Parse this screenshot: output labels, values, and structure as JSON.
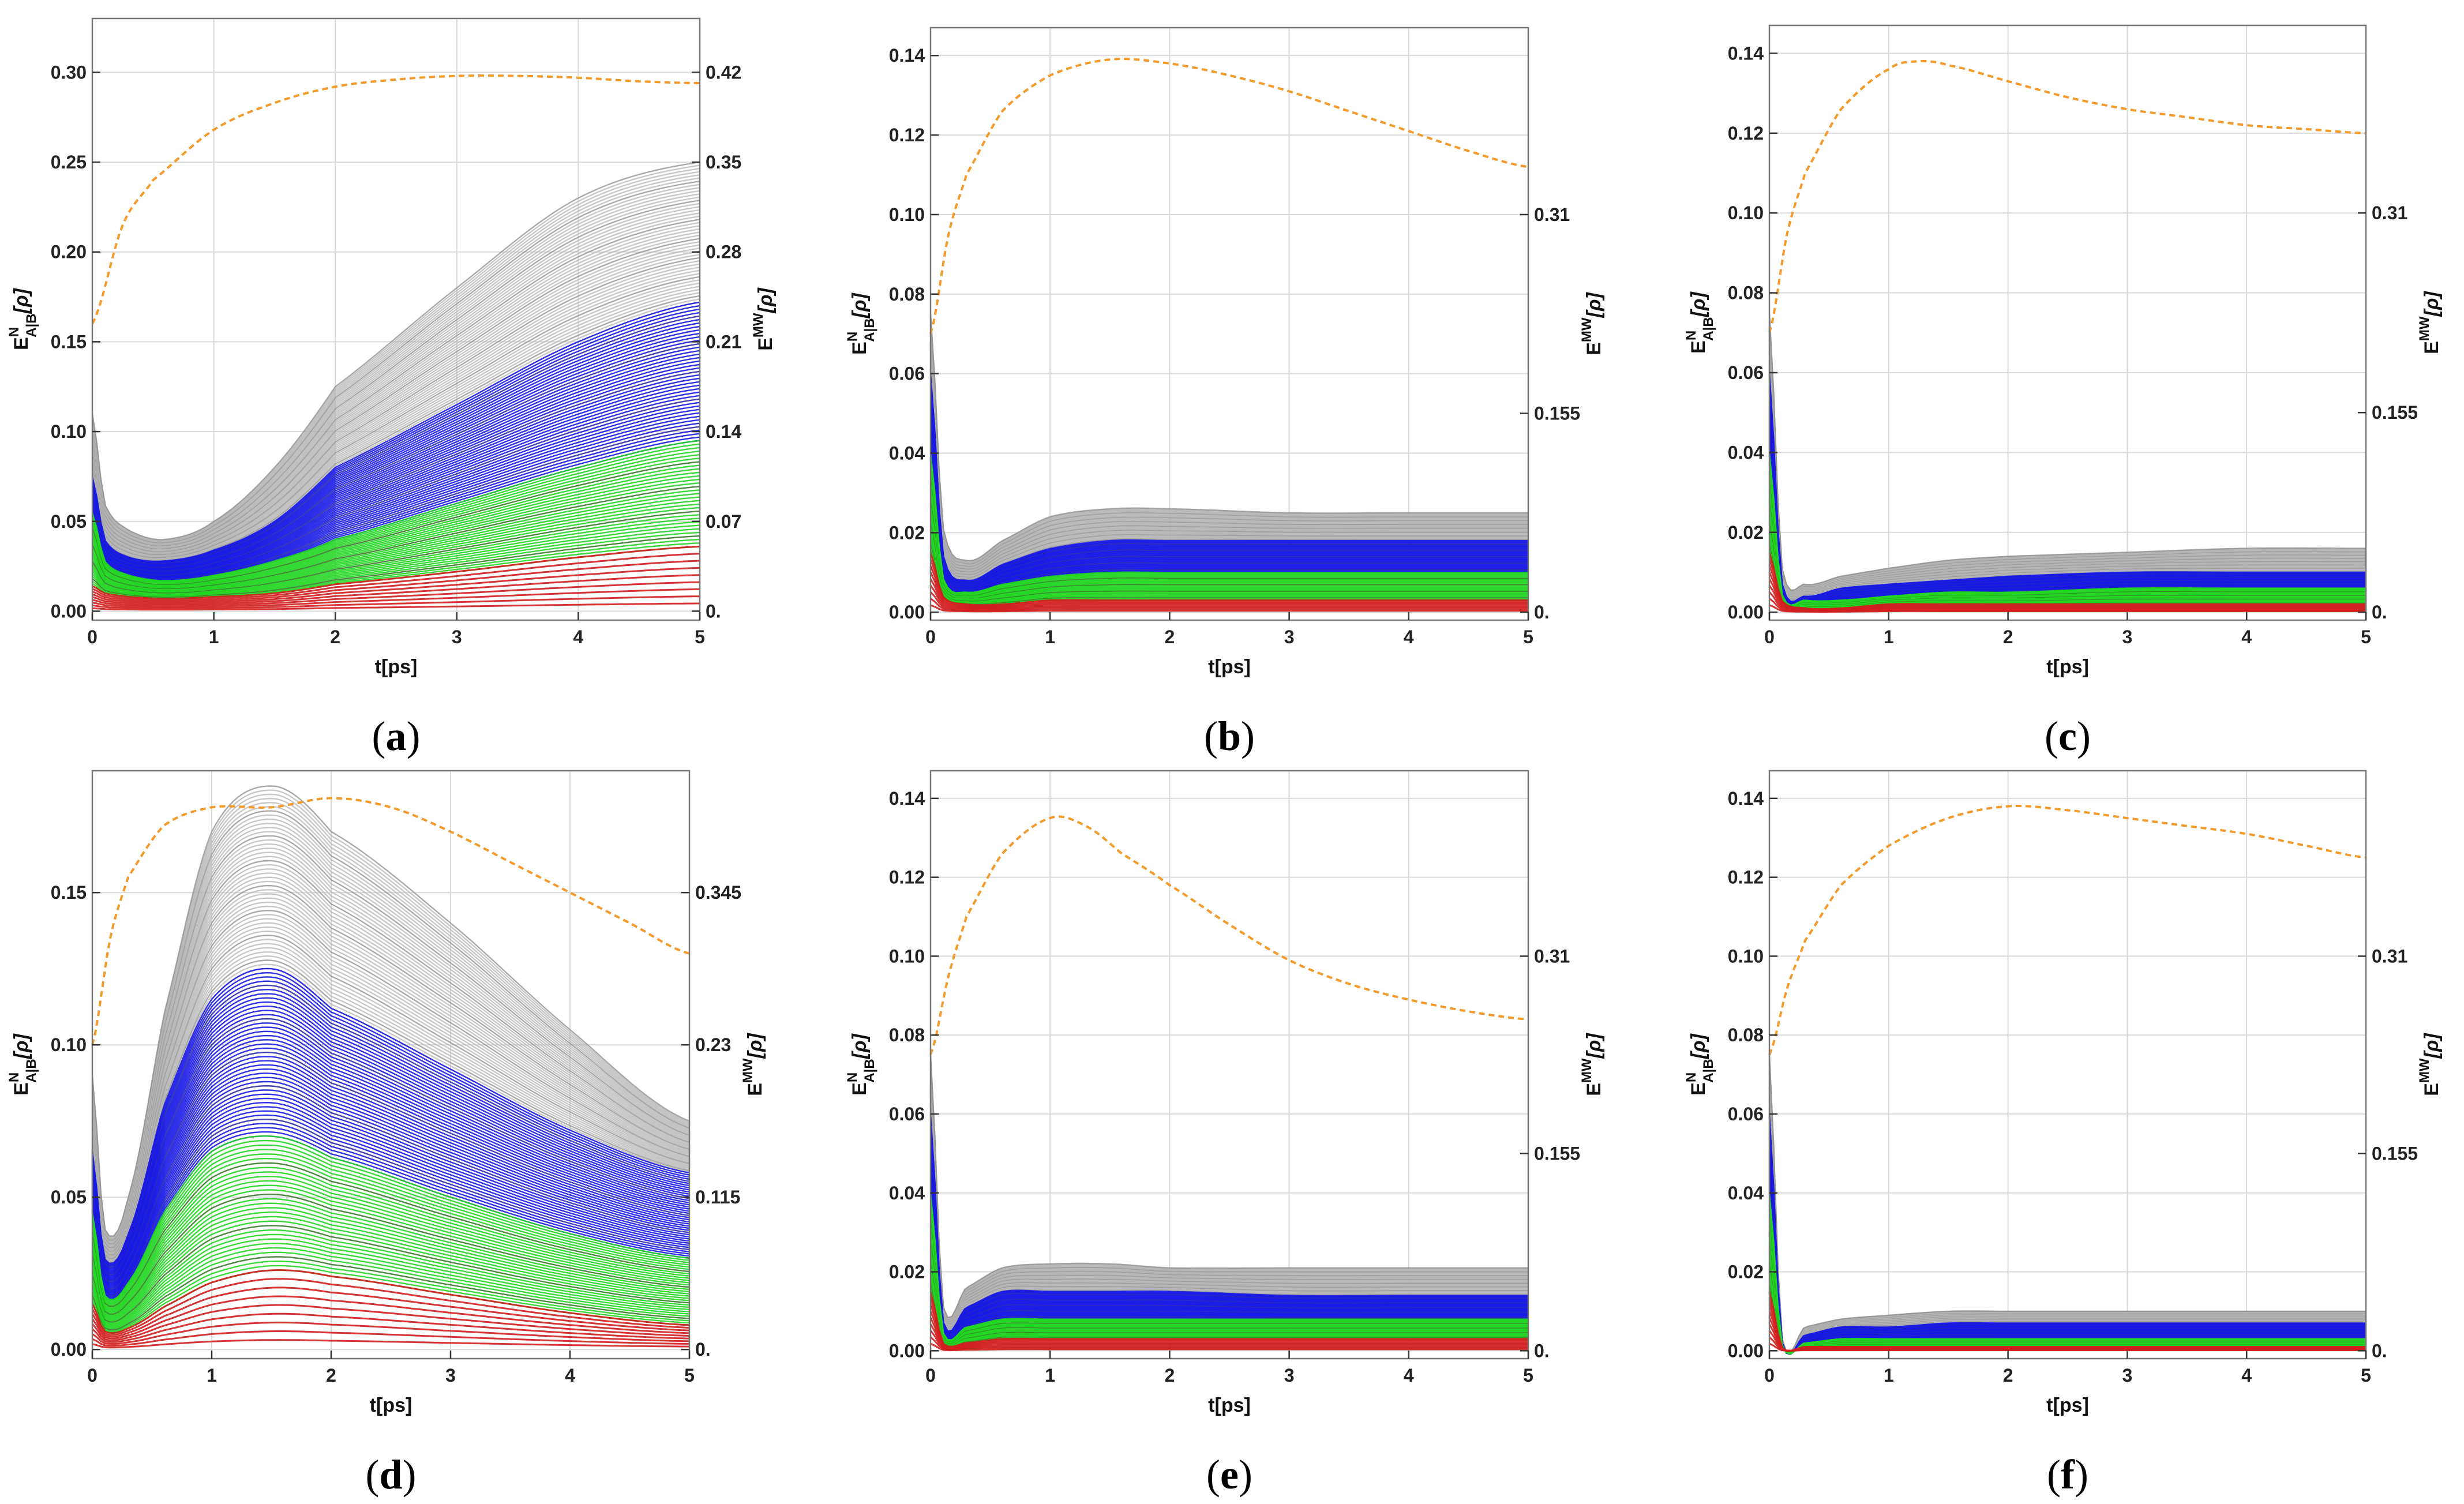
{
  "figure_note": "Six panels (a)-(f)",
  "colors": {
    "gray": "#b4b4b4",
    "blue": "#1a1ae6",
    "green": "#22d622",
    "darkgreen": "#3a7a2a",
    "red": "#d21e1e",
    "orange": "#f39a2a",
    "grid": "#d9d9d9",
    "frame": "#777777"
  },
  "chart_data": [
    {
      "type": "line",
      "caption": "(a)",
      "xlabel": "t[ps]",
      "ylabel_left": "E^N_{A|B}[ρ]",
      "ylabel_right": "E^{MW}[ρ]",
      "xlim": [
        0,
        5
      ],
      "ylim": [
        -0.005,
        0.33
      ],
      "xticks": [
        "0",
        "1",
        "2",
        "3",
        "4",
        "5"
      ],
      "yticks": [
        "0.00",
        "0.05",
        "0.10",
        "0.15",
        "0.20",
        "0.25",
        "0.30"
      ],
      "right_ticks": [
        "0.",
        "0.07",
        "0.14",
        "0.21",
        "0.28",
        "0.35",
        "0.42"
      ],
      "right_tick_positions": [
        0,
        0.05,
        0.1,
        0.15,
        0.2,
        0.25,
        0.3
      ],
      "series": {
        "gray": {
          "name": "gray band",
          "values": [
            0.11,
            0.06,
            0.045,
            0.04,
            0.05,
            0.08,
            0.125,
            0.18,
            0.23,
            0.25
          ]
        },
        "blue": {
          "name": "blue band",
          "values": [
            0.075,
            0.04,
            0.03,
            0.028,
            0.034,
            0.05,
            0.08,
            0.115,
            0.15,
            0.172
          ]
        },
        "green": {
          "name": "green band",
          "values": [
            0.055,
            0.028,
            0.02,
            0.017,
            0.02,
            0.028,
            0.04,
            0.06,
            0.08,
            0.095
          ]
        },
        "red": {
          "name": "red band",
          "values": [
            0.014,
            0.01,
            0.008,
            0.007,
            0.008,
            0.01,
            0.015,
            0.022,
            0.03,
            0.036
          ]
        },
        "orange": {
          "name": "E^MW (dashed)",
          "x": [
            0,
            0.25,
            0.5,
            1,
            1.5,
            2,
            2.5,
            3,
            3.5,
            4,
            4.5,
            5
          ],
          "values": [
            0.16,
            0.215,
            0.24,
            0.268,
            0.283,
            0.292,
            0.296,
            0.298,
            0.298,
            0.297,
            0.295,
            0.294
          ]
        }
      }
    },
    {
      "type": "line",
      "caption": "(b)",
      "xlabel": "t[ps]",
      "ylabel_left": "E^N_{A|B}[ρ]",
      "ylabel_right": "E^{MW}[ρ]",
      "xlim": [
        0,
        5
      ],
      "ylim": [
        -0.002,
        0.147
      ],
      "xticks": [
        "0",
        "1",
        "2",
        "3",
        "4",
        "5"
      ],
      "yticks": [
        "0.00",
        "0.02",
        "0.04",
        "0.06",
        "0.08",
        "0.10",
        "0.12",
        "0.14"
      ],
      "right_ticks": [
        "0.",
        "0.155",
        "0.31"
      ],
      "right_tick_positions": [
        0,
        0.05,
        0.1
      ],
      "series": {
        "gray": {
          "name": "gray band",
          "values": [
            0.075,
            0.022,
            0.013,
            0.018,
            0.024,
            0.026,
            0.026,
            0.025,
            0.025,
            0.025
          ]
        },
        "blue": {
          "name": "blue band",
          "values": [
            0.06,
            0.015,
            0.008,
            0.012,
            0.016,
            0.018,
            0.018,
            0.018,
            0.018,
            0.018
          ]
        },
        "green": {
          "name": "green band",
          "values": [
            0.04,
            0.009,
            0.005,
            0.007,
            0.009,
            0.01,
            0.01,
            0.01,
            0.01,
            0.01
          ]
        },
        "red": {
          "name": "red band",
          "values": [
            0.015,
            0.004,
            0.002,
            0.002,
            0.003,
            0.003,
            0.003,
            0.003,
            0.003,
            0.003
          ]
        },
        "orange": {
          "name": "E^MW (dashed)",
          "x": [
            0,
            0.15,
            0.3,
            0.6,
            1,
            1.5,
            2,
            2.5,
            3,
            3.5,
            4,
            4.5,
            5
          ],
          "values": [
            0.07,
            0.095,
            0.11,
            0.126,
            0.135,
            0.139,
            0.138,
            0.135,
            0.131,
            0.126,
            0.121,
            0.116,
            0.112
          ]
        }
      }
    },
    {
      "type": "line",
      "caption": "(c)",
      "xlabel": "t[ps]",
      "ylabel_left": "E^N_{A|B}[ρ]",
      "ylabel_right": "E^{MW}[ρ]",
      "xlim": [
        0,
        5
      ],
      "ylim": [
        -0.002,
        0.147
      ],
      "xticks": [
        "0",
        "1",
        "2",
        "3",
        "4",
        "5"
      ],
      "yticks": [
        "0.00",
        "0.02",
        "0.04",
        "0.06",
        "0.08",
        "0.10",
        "0.12",
        "0.14"
      ],
      "right_ticks": [
        "0.",
        "0.155",
        "0.31"
      ],
      "right_tick_positions": [
        0,
        0.05,
        0.1
      ],
      "series": {
        "gray": {
          "name": "gray band",
          "values": [
            0.075,
            0.012,
            0.007,
            0.009,
            0.011,
            0.013,
            0.014,
            0.015,
            0.016,
            0.016
          ]
        },
        "blue": {
          "name": "blue band",
          "values": [
            0.06,
            0.008,
            0.004,
            0.006,
            0.007,
            0.008,
            0.009,
            0.01,
            0.01,
            0.01
          ]
        },
        "green": {
          "name": "green band",
          "values": [
            0.04,
            0.005,
            0.003,
            0.003,
            0.004,
            0.005,
            0.005,
            0.006,
            0.006,
            0.006
          ]
        },
        "red": {
          "name": "red band",
          "values": [
            0.015,
            0.003,
            0.001,
            0.001,
            0.002,
            0.002,
            0.002,
            0.002,
            0.002,
            0.002
          ]
        },
        "orange": {
          "name": "E^MW (dashed)",
          "x": [
            0,
            0.15,
            0.3,
            0.6,
            1,
            1.25,
            1.5,
            2,
            2.5,
            3,
            3.5,
            4,
            4.5,
            5
          ],
          "values": [
            0.07,
            0.095,
            0.11,
            0.126,
            0.136,
            0.138,
            0.137,
            0.133,
            0.129,
            0.126,
            0.124,
            0.122,
            0.121,
            0.12
          ]
        }
      }
    },
    {
      "type": "line",
      "caption": "(d)",
      "xlabel": "t[ps]",
      "ylabel_left": "E^N_{A|B}[ρ]",
      "ylabel_right": "E^{MW}[ρ]",
      "xlim": [
        0,
        5
      ],
      "ylim": [
        -0.003,
        0.19
      ],
      "xticks": [
        "0",
        "1",
        "2",
        "3",
        "4",
        "5"
      ],
      "yticks": [
        "0.00",
        "0.05",
        "0.10",
        "0.15"
      ],
      "right_ticks": [
        "0.",
        "0.115",
        "0.23",
        "0.345"
      ],
      "right_tick_positions": [
        0,
        0.05,
        0.1,
        0.15
      ],
      "series": {
        "gray": {
          "name": "gray band",
          "values": [
            0.09,
            0.04,
            0.05,
            0.11,
            0.17,
            0.185,
            0.17,
            0.14,
            0.105,
            0.075
          ]
        },
        "blue": {
          "name": "blue band",
          "values": [
            0.065,
            0.03,
            0.038,
            0.08,
            0.115,
            0.125,
            0.112,
            0.092,
            0.072,
            0.058
          ]
        },
        "green": {
          "name": "green band",
          "values": [
            0.045,
            0.018,
            0.022,
            0.045,
            0.065,
            0.07,
            0.063,
            0.05,
            0.038,
            0.03
          ]
        },
        "red": {
          "name": "red band",
          "values": [
            0.015,
            0.006,
            0.007,
            0.014,
            0.022,
            0.026,
            0.024,
            0.018,
            0.012,
            0.008
          ]
        },
        "orange": {
          "name": "E^MW (dashed)",
          "x": [
            0,
            0.15,
            0.3,
            0.6,
            1,
            1.5,
            2,
            2.5,
            3,
            3.5,
            4,
            4.5,
            5
          ],
          "values": [
            0.1,
            0.135,
            0.155,
            0.172,
            0.178,
            0.178,
            0.181,
            0.178,
            0.17,
            0.16,
            0.15,
            0.14,
            0.13
          ]
        }
      }
    },
    {
      "type": "line",
      "caption": "(e)",
      "xlabel": "t[ps]",
      "ylabel_left": "E^N_{A|B}[ρ]",
      "ylabel_right": "E^{MW}[ρ]",
      "xlim": [
        0,
        5
      ],
      "ylim": [
        -0.002,
        0.147
      ],
      "xticks": [
        "0",
        "1",
        "2",
        "3",
        "4",
        "5"
      ],
      "yticks": [
        "0.00",
        "0.02",
        "0.04",
        "0.06",
        "0.08",
        "0.10",
        "0.12",
        "0.14"
      ],
      "right_ticks": [
        "0.",
        "0.155",
        "0.31"
      ],
      "right_tick_positions": [
        0,
        0.05,
        0.1
      ],
      "series": {
        "gray": {
          "name": "gray band",
          "values": [
            0.075,
            0.012,
            0.016,
            0.021,
            0.022,
            0.022,
            0.021,
            0.021,
            0.021,
            0.021
          ]
        },
        "blue": {
          "name": "blue band",
          "values": [
            0.06,
            0.008,
            0.011,
            0.015,
            0.015,
            0.015,
            0.015,
            0.014,
            0.014,
            0.014
          ]
        },
        "green": {
          "name": "green band",
          "values": [
            0.04,
            0.005,
            0.006,
            0.008,
            0.008,
            0.008,
            0.008,
            0.008,
            0.008,
            0.008
          ]
        },
        "red": {
          "name": "red band",
          "values": [
            0.015,
            0.002,
            0.002,
            0.003,
            0.003,
            0.003,
            0.003,
            0.003,
            0.003,
            0.003
          ]
        },
        "orange": {
          "name": "E^MW (dashed)",
          "x": [
            0,
            0.15,
            0.3,
            0.6,
            1,
            1.3,
            1.6,
            2,
            2.5,
            3,
            3.5,
            4,
            4.5,
            5
          ],
          "values": [
            0.075,
            0.095,
            0.11,
            0.126,
            0.135,
            0.133,
            0.126,
            0.118,
            0.108,
            0.099,
            0.093,
            0.089,
            0.086,
            0.084
          ]
        }
      }
    },
    {
      "type": "line",
      "caption": "(f)",
      "xlabel": "t[ps]",
      "ylabel_left": "E^N_{A|B}[ρ]",
      "ylabel_right": "E^{MW}[ρ]",
      "xlim": [
        0,
        5
      ],
      "ylim": [
        -0.002,
        0.147
      ],
      "xticks": [
        "0",
        "1",
        "2",
        "3",
        "4",
        "5"
      ],
      "yticks": [
        "0.00",
        "0.02",
        "0.04",
        "0.06",
        "0.08",
        "0.10",
        "0.12",
        "0.14"
      ],
      "right_ticks": [
        "0.",
        "0.155",
        "0.31"
      ],
      "right_tick_positions": [
        0,
        0.05,
        0.1
      ],
      "series": {
        "gray": {
          "name": "gray band",
          "values": [
            0.075,
            0.004,
            0.006,
            0.008,
            0.009,
            0.01,
            0.01,
            0.01,
            0.01,
            0.01
          ]
        },
        "blue": {
          "name": "blue band",
          "values": [
            0.06,
            0.003,
            0.004,
            0.006,
            0.006,
            0.007,
            0.007,
            0.007,
            0.007,
            0.007
          ]
        },
        "green": {
          "name": "green band",
          "values": [
            0.04,
            0.002,
            0.002,
            0.003,
            0.003,
            0.003,
            0.003,
            0.003,
            0.003,
            0.003
          ]
        },
        "red": {
          "name": "red band",
          "values": [
            0.015,
            0.001,
            0.001,
            0.001,
            0.001,
            0.001,
            0.001,
            0.001,
            0.001,
            0.001
          ]
        },
        "orange": {
          "name": "E^MW (dashed)",
          "x": [
            0,
            0.15,
            0.3,
            0.6,
            1,
            1.5,
            2,
            2.5,
            3,
            3.5,
            4,
            4.5,
            5
          ],
          "values": [
            0.075,
            0.092,
            0.104,
            0.118,
            0.128,
            0.135,
            0.138,
            0.137,
            0.135,
            0.133,
            0.131,
            0.128,
            0.125
          ]
        }
      }
    }
  ]
}
